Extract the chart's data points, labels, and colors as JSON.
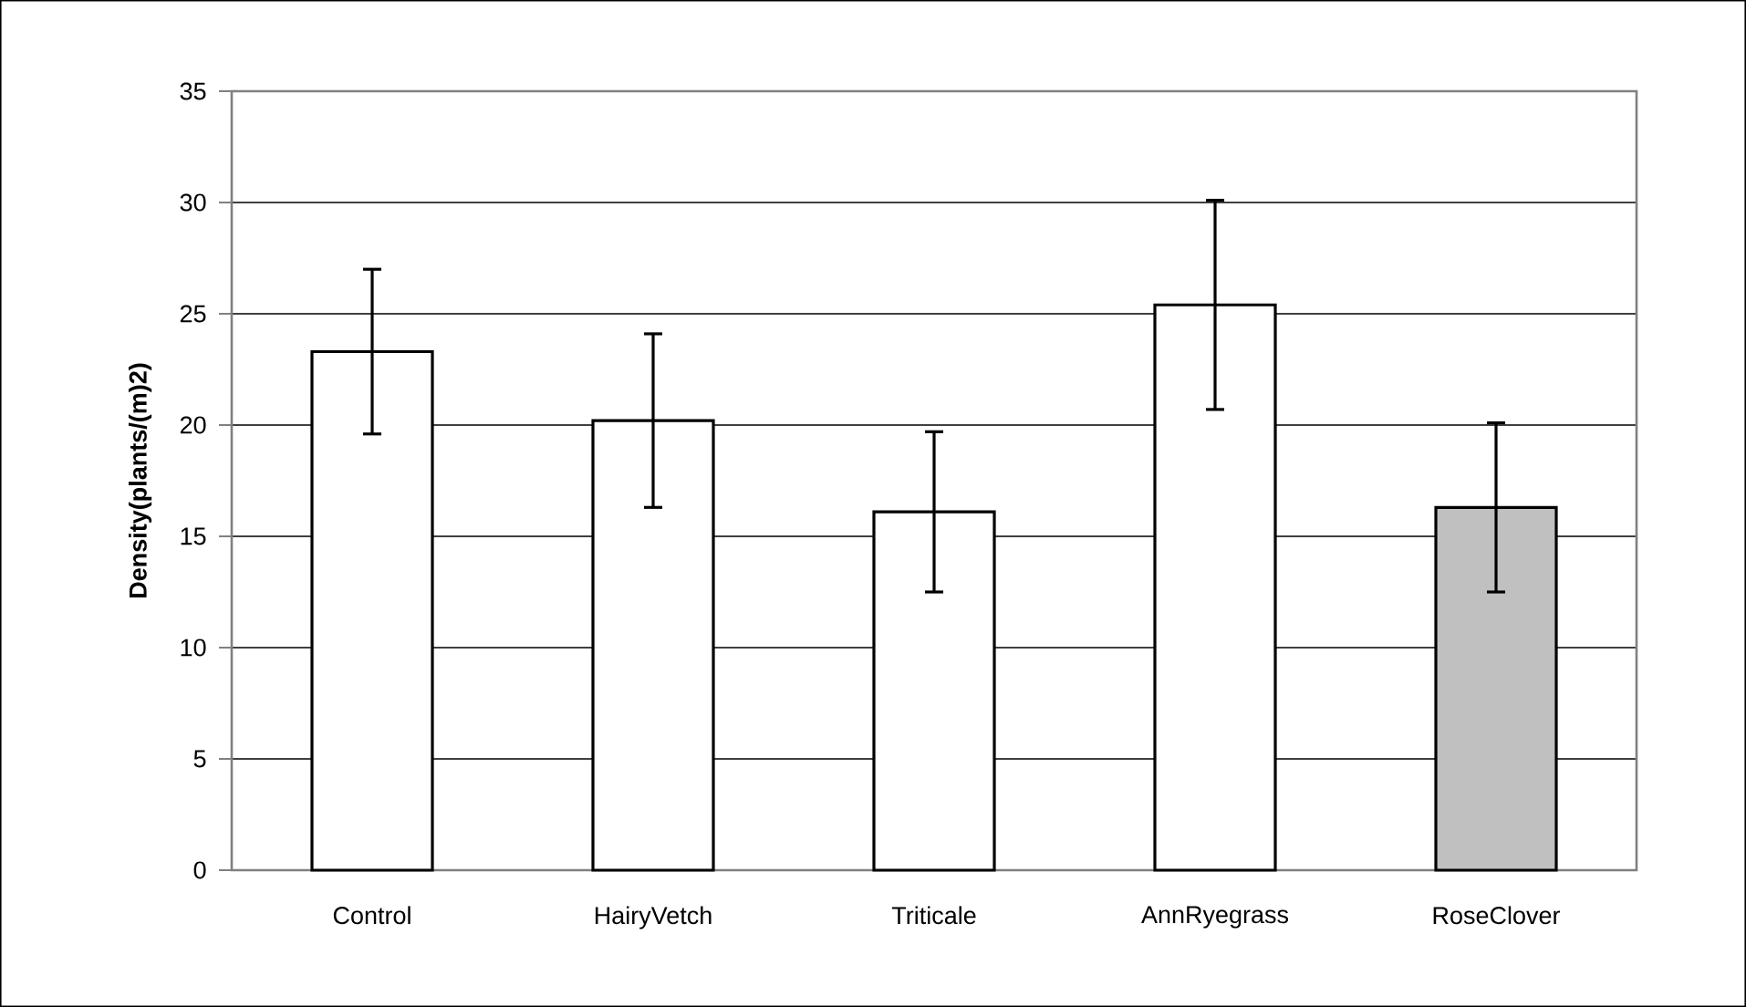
{
  "chart_data": {
    "type": "bar",
    "ylabel": "Density(plants/(m)2)",
    "categories": [
      "Control",
      "HairyVetch",
      "Triticale",
      "AnnRyegrass",
      "RoseClover"
    ],
    "values": [
      23.3,
      20.2,
      16.1,
      25.4,
      16.3
    ],
    "errors": [
      3.7,
      3.9,
      3.6,
      4.7,
      3.8
    ],
    "colors": [
      "#ffffff",
      "#ffffff",
      "#ffffff",
      "#ffffff",
      "#c0c0c0"
    ],
    "ylim": [
      0,
      35
    ],
    "yticks": [
      0,
      5,
      10,
      15,
      20,
      25,
      30,
      35
    ],
    "grid": "y"
  }
}
